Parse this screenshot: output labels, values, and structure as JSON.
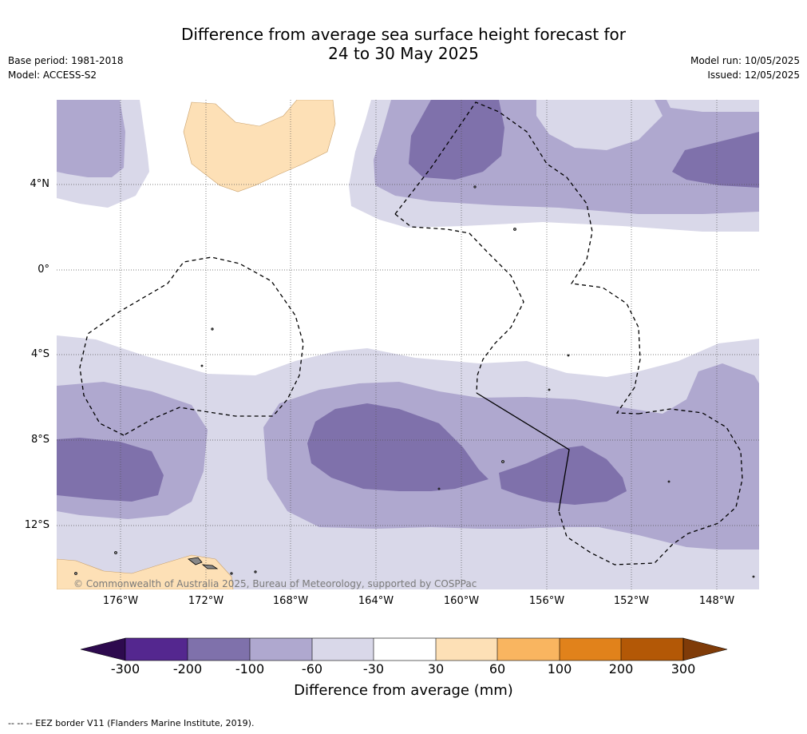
{
  "title": {
    "line1": "Difference from average sea surface height forecast for",
    "line2": "24 to 30 May 2025"
  },
  "meta_left": {
    "base_period": "Base period: 1981-2018",
    "model": "Model: ACCESS-S2"
  },
  "meta_right": {
    "model_run": "Model run: 10/05/2025",
    "issued": "Issued: 12/05/2025"
  },
  "map": {
    "lat_ticks": [
      "4°N",
      "0°",
      "4°S",
      "8°S",
      "12°S"
    ],
    "lon_ticks": [
      "176°W",
      "172°W",
      "168°W",
      "164°W",
      "160°W",
      "156°W",
      "152°W",
      "148°W"
    ],
    "copyright": "© Commonwealth of Australia 2025, Bureau of Meteorology, supported by COSPPac"
  },
  "colorbar": {
    "label": "Difference from average (mm)",
    "ticks": [
      "-300",
      "-200",
      "-100",
      "-60",
      "-30",
      "30",
      "60",
      "100",
      "200",
      "300"
    ],
    "colors": {
      "below": "#2d0a4e",
      "bins": [
        "#54278f",
        "#7f71ab",
        "#afa8cf",
        "#d9d8e9",
        "#ffffff",
        "#fde0b6",
        "#f9b560",
        "#e1821b",
        "#b35806"
      ],
      "above": "#7f3b08"
    }
  },
  "legend_note": "--  --  -- EEZ border V11 (Flanders Marine Institute, 2019)."
}
